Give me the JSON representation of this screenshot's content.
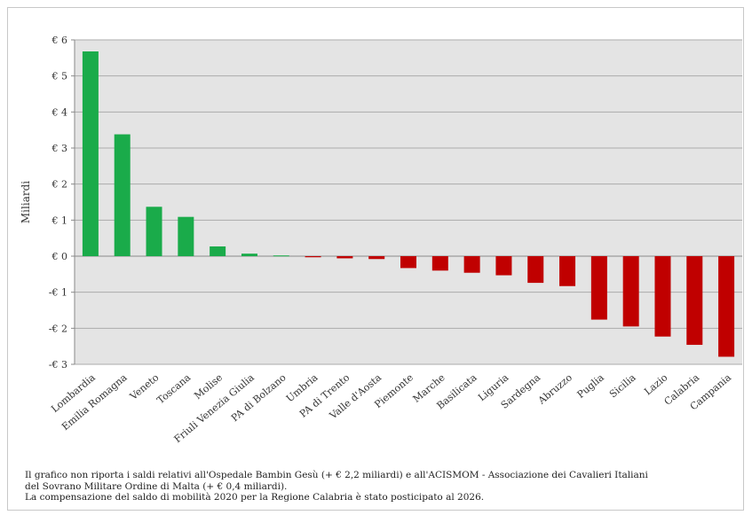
{
  "chart_data": {
    "type": "bar",
    "ylabel": "Miliardi",
    "ylim": [
      -3,
      6
    ],
    "yticks": [
      6,
      5,
      4,
      3,
      2,
      1,
      0,
      -1,
      -2,
      -3
    ],
    "ytick_labels": [
      "€ 6",
      "€ 5",
      "€ 4",
      "€ 3",
      "€ 2",
      "€ 1",
      "€ 0",
      "-€ 1",
      "-€ 2",
      "-€ 3"
    ],
    "grid": true,
    "positive_color": "#1aab4a",
    "negative_color": "#c00000",
    "plot_bg": "#e4e4e4",
    "categories": [
      "Lombardia",
      "Emilia Romagna",
      "Veneto",
      "Toscana",
      "Molise",
      "Friuli Venezia Giulia",
      "PA di Bolzano",
      "Umbria",
      "PA di Trento",
      "Valle d'Aosta",
      "Piemonte",
      "Marche",
      "Basilicata",
      "Liguria",
      "Sardegna",
      "Abruzzo",
      "Puglia",
      "Sicilia",
      "Lazio",
      "Calabria",
      "Campania"
    ],
    "values": [
      5.68,
      3.38,
      1.37,
      1.09,
      0.27,
      0.07,
      0.02,
      -0.03,
      -0.06,
      -0.08,
      -0.33,
      -0.4,
      -0.46,
      -0.53,
      -0.74,
      -0.83,
      -1.76,
      -1.95,
      -2.23,
      -2.46,
      -2.79
    ]
  },
  "notes": {
    "line1": "Il grafico non riporta i saldi relativi all'Ospedale Bambin Gesù (+ € 2,2 miliardi) e all'ACISMOM - Associazione dei Cavalieri Italiani",
    "line2": "del Sovrano Militare Ordine di Malta (+ € 0,4 miliardi).",
    "line3": "La compensazione del saldo di mobilità 2020 per la Regione Calabria è stato posticipato al 2026."
  }
}
